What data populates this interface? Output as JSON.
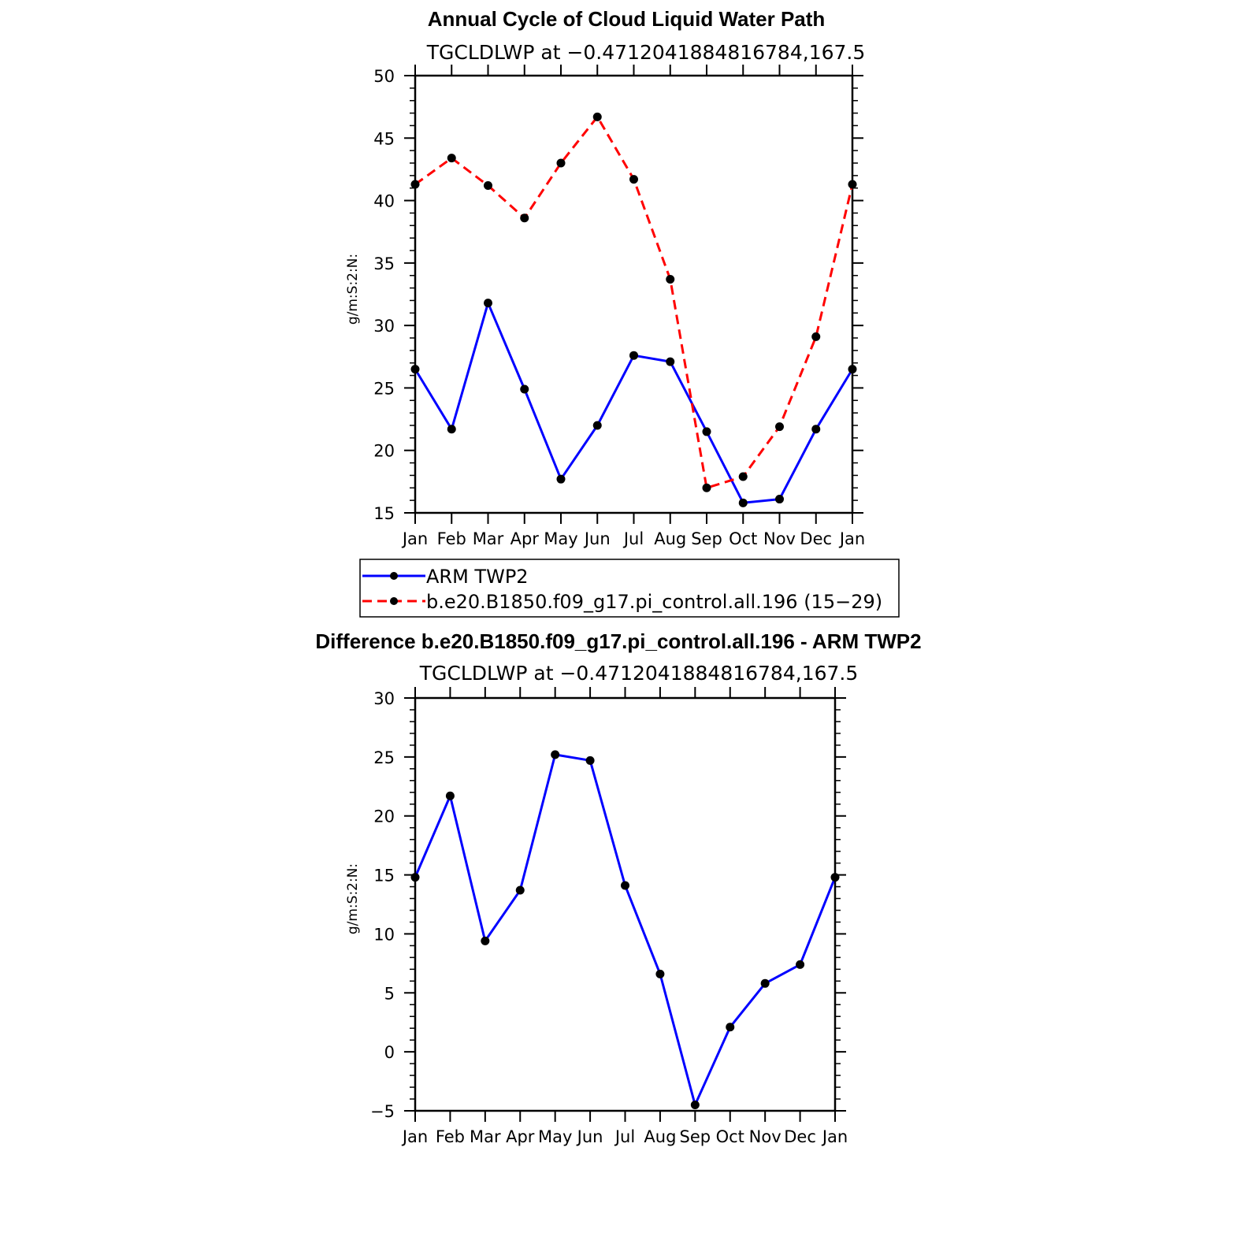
{
  "colors": {
    "arm": "#0000ff",
    "model": "#ff0000",
    "marker": "#000000",
    "frame": "#000000"
  },
  "chart_data": [
    {
      "type": "line",
      "title": "Annual Cycle of Cloud Liquid Water Path",
      "subtitle": "TGCLDLWP at −0.4712041884816784,167.5",
      "xlabel": "",
      "ylabel": "g/m:S:2:N:",
      "categories": [
        "Jan",
        "Feb",
        "Mar",
        "Apr",
        "May",
        "Jun",
        "Jul",
        "Aug",
        "Sep",
        "Oct",
        "Nov",
        "Dec",
        "Jan"
      ],
      "ylim": [
        15,
        50
      ],
      "yticks": [
        "15",
        "20",
        "25",
        "30",
        "35",
        "40",
        "45",
        "50"
      ],
      "ytick_values": [
        15,
        20,
        25,
        30,
        35,
        40,
        45,
        50
      ],
      "series": [
        {
          "name": "ARM TWP2",
          "color": "#0000ff",
          "dash": "solid",
          "values": [
            26.5,
            21.7,
            31.8,
            24.9,
            17.7,
            22.0,
            27.6,
            27.1,
            21.5,
            15.8,
            16.1,
            21.7,
            26.5
          ]
        },
        {
          "name": "b.e20.B1850.f09_g17.pi_control.all.196 (15−29)",
          "color": "#ff0000",
          "dash": "dashed",
          "values": [
            41.3,
            43.4,
            41.2,
            38.6,
            43.0,
            46.7,
            41.7,
            33.7,
            17.0,
            17.9,
            21.9,
            29.1,
            41.3
          ]
        }
      ],
      "legend": [
        "ARM TWP2",
        "b.e20.B1850.f09_g17.pi_control.all.196 (15−29)"
      ]
    },
    {
      "type": "line",
      "title": "Difference b.e20.B1850.f09_g17.pi_control.all.196 - ARM TWP2",
      "subtitle": "TGCLDLWP at −0.4712041884816784,167.5",
      "xlabel": "",
      "ylabel": "g/m:S:2:N:",
      "categories": [
        "Jan",
        "Feb",
        "Mar",
        "Apr",
        "May",
        "Jun",
        "Jul",
        "Aug",
        "Sep",
        "Oct",
        "Nov",
        "Dec",
        "Jan"
      ],
      "ylim": [
        -5,
        30
      ],
      "yticks": [
        "−5",
        "0",
        "5",
        "10",
        "15",
        "20",
        "25",
        "30"
      ],
      "ytick_values": [
        -5,
        0,
        5,
        10,
        15,
        20,
        25,
        30
      ],
      "series": [
        {
          "name": "Difference",
          "color": "#0000ff",
          "dash": "solid",
          "values": [
            14.8,
            21.7,
            9.4,
            13.7,
            25.2,
            24.7,
            14.1,
            6.6,
            -4.5,
            2.1,
            5.8,
            7.4,
            14.8
          ]
        }
      ]
    }
  ]
}
